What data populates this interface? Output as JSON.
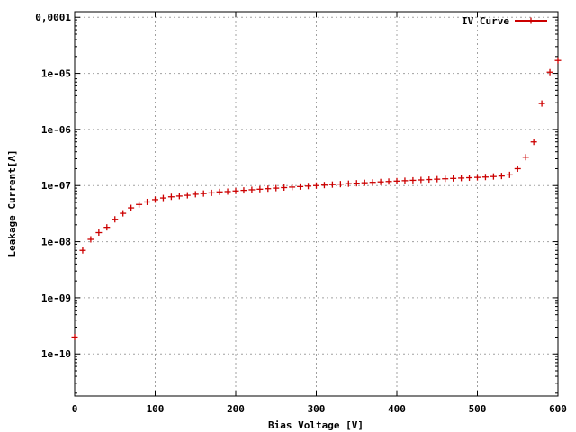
{
  "chart_data": {
    "type": "scatter",
    "xlabel": "Bias Voltage [V]",
    "ylabel": "Leakage Current[A]",
    "xlim": [
      0,
      600
    ],
    "ylim_log10": [
      -10.75,
      -3.9
    ],
    "y_scale": "log",
    "grid": true,
    "legend_position": "top-right",
    "x_ticks": [
      {
        "value": 0,
        "label": "0"
      },
      {
        "value": 100,
        "label": "100"
      },
      {
        "value": 200,
        "label": "200"
      },
      {
        "value": 300,
        "label": "300"
      },
      {
        "value": 400,
        "label": "400"
      },
      {
        "value": 500,
        "label": "500"
      },
      {
        "value": 600,
        "label": "600"
      }
    ],
    "y_ticks": [
      {
        "value": 1e-10,
        "label": "1e-10"
      },
      {
        "value": 1e-09,
        "label": "1e-09"
      },
      {
        "value": 1e-08,
        "label": "1e-08"
      },
      {
        "value": 1e-07,
        "label": "1e-07"
      },
      {
        "value": 1e-06,
        "label": "1e-06"
      },
      {
        "value": 1e-05,
        "label": "1e-05"
      },
      {
        "value": 0.0001,
        "label": "0,0001"
      }
    ],
    "series": [
      {
        "name": "IV Curve",
        "color": "#cc0000",
        "marker": "plus",
        "points": [
          [
            0,
            2e-10
          ],
          [
            10,
            7e-09
          ],
          [
            20,
            1.1e-08
          ],
          [
            30,
            1.45e-08
          ],
          [
            40,
            1.8e-08
          ],
          [
            50,
            2.5e-08
          ],
          [
            60,
            3.2e-08
          ],
          [
            70,
            4e-08
          ],
          [
            80,
            4.6e-08
          ],
          [
            90,
            5.1e-08
          ],
          [
            100,
            5.6e-08
          ],
          [
            110,
            6e-08
          ],
          [
            120,
            6.3e-08
          ],
          [
            130,
            6.5e-08
          ],
          [
            140,
            6.7e-08
          ],
          [
            150,
            7e-08
          ],
          [
            160,
            7.2e-08
          ],
          [
            170,
            7.4e-08
          ],
          [
            180,
            7.7e-08
          ],
          [
            190,
            7.8e-08
          ],
          [
            200,
            8e-08
          ],
          [
            210,
            8.2e-08
          ],
          [
            220,
            8.4e-08
          ],
          [
            230,
            8.6e-08
          ],
          [
            240,
            8.8e-08
          ],
          [
            250,
            9e-08
          ],
          [
            260,
            9.2e-08
          ],
          [
            270,
            9.4e-08
          ],
          [
            280,
            9.6e-08
          ],
          [
            290,
            9.8e-08
          ],
          [
            300,
            1e-07
          ],
          [
            310,
            1.02e-07
          ],
          [
            320,
            1.04e-07
          ],
          [
            330,
            1.06e-07
          ],
          [
            340,
            1.08e-07
          ],
          [
            350,
            1.1e-07
          ],
          [
            360,
            1.12e-07
          ],
          [
            370,
            1.14e-07
          ],
          [
            380,
            1.16e-07
          ],
          [
            390,
            1.18e-07
          ],
          [
            400,
            1.2e-07
          ],
          [
            410,
            1.22e-07
          ],
          [
            420,
            1.24e-07
          ],
          [
            430,
            1.26e-07
          ],
          [
            440,
            1.28e-07
          ],
          [
            450,
            1.3e-07
          ],
          [
            460,
            1.32e-07
          ],
          [
            470,
            1.34e-07
          ],
          [
            480,
            1.36e-07
          ],
          [
            490,
            1.38e-07
          ],
          [
            500,
            1.4e-07
          ],
          [
            510,
            1.42e-07
          ],
          [
            520,
            1.45e-07
          ],
          [
            530,
            1.48e-07
          ],
          [
            540,
            1.55e-07
          ],
          [
            550,
            2e-07
          ],
          [
            560,
            3.2e-07
          ],
          [
            570,
            6e-07
          ],
          [
            580,
            2.9e-06
          ],
          [
            590,
            1.05e-05
          ],
          [
            600,
            1.7e-05
          ]
        ]
      }
    ]
  }
}
